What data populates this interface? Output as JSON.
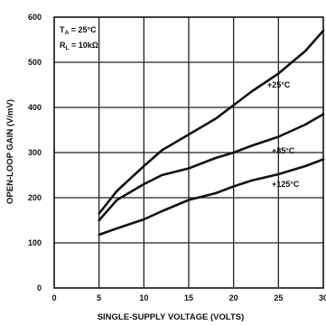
{
  "chart_data": {
    "type": "line",
    "title": "",
    "xlabel": "SINGLE-SUPPLY VOLTAGE (VOLTS)",
    "ylabel": "OPEN-LOOP GAIN (V/mV)",
    "xlim": [
      0,
      30
    ],
    "ylim": [
      0,
      600
    ],
    "xticks": [
      0,
      5,
      10,
      15,
      20,
      25,
      30
    ],
    "yticks": [
      0,
      100,
      200,
      300,
      400,
      500,
      600
    ],
    "grid": true,
    "conditions": {
      "ta_prefix": "T",
      "ta_sub": "A",
      "ta_value": " = 25°C",
      "rl_prefix": "R",
      "rl_sub": "L",
      "rl_value": " = 10kΩ"
    },
    "series": [
      {
        "name": "+25°C",
        "x": [
          5,
          7,
          10,
          12,
          15,
          18,
          20,
          22,
          25,
          28,
          30
        ],
        "y": [
          165,
          215,
          270,
          305,
          340,
          375,
          405,
          435,
          475,
          525,
          570
        ]
      },
      {
        "name": "+85°C",
        "x": [
          5,
          7,
          10,
          12,
          15,
          18,
          20,
          22,
          25,
          28,
          30
        ],
        "y": [
          150,
          195,
          230,
          250,
          265,
          288,
          300,
          315,
          335,
          362,
          385
        ]
      },
      {
        "name": "+125°C",
        "x": [
          5,
          7,
          10,
          12,
          15,
          18,
          20,
          22,
          25,
          28,
          30
        ],
        "y": [
          118,
          132,
          152,
          170,
          195,
          210,
          225,
          238,
          252,
          270,
          285
        ]
      }
    ]
  }
}
